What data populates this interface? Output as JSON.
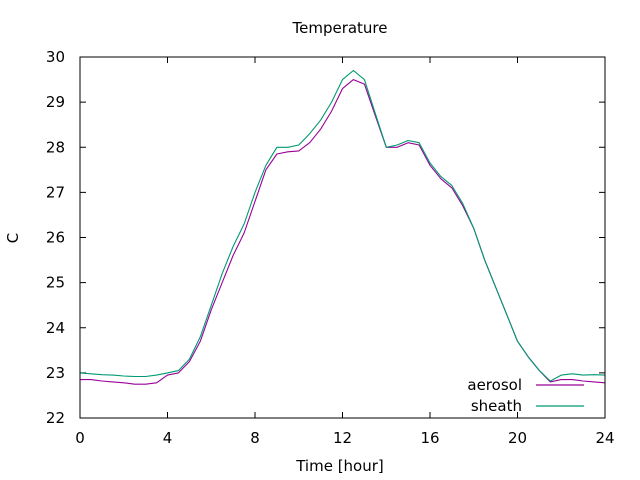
{
  "chart_data": {
    "type": "line",
    "title": "Temperature",
    "xlabel": "Time [hour]",
    "ylabel": "C",
    "xlim": [
      0,
      24
    ],
    "ylim": [
      22,
      30
    ],
    "xticks": [
      0,
      4,
      8,
      12,
      16,
      20,
      24
    ],
    "yticks": [
      22,
      23,
      24,
      25,
      26,
      27,
      28,
      29,
      30
    ],
    "grid": false,
    "legend_position": "bottom-right",
    "series": [
      {
        "name": "aerosol",
        "color": "#990099",
        "x": [
          0,
          0.5,
          1,
          1.5,
          2,
          2.5,
          3,
          3.5,
          4,
          4.5,
          5,
          5.5,
          6,
          6.5,
          7,
          7.5,
          8,
          8.5,
          9,
          9.5,
          10,
          10.5,
          11,
          11.5,
          12,
          12.5,
          13,
          13.5,
          14,
          14.5,
          15,
          15.5,
          16,
          16.5,
          17,
          17.5,
          18,
          18.5,
          19,
          19.5,
          20,
          20.5,
          21,
          21.5,
          22,
          22.5,
          23,
          23.5,
          24
        ],
        "y": [
          22.85,
          22.85,
          22.82,
          22.8,
          22.78,
          22.75,
          22.75,
          22.78,
          22.95,
          23.0,
          23.25,
          23.7,
          24.4,
          25.0,
          25.6,
          26.1,
          26.8,
          27.5,
          27.85,
          27.9,
          27.92,
          28.1,
          28.4,
          28.8,
          29.3,
          29.5,
          29.4,
          28.7,
          28.0,
          28.0,
          28.1,
          28.05,
          27.6,
          27.3,
          27.1,
          26.7,
          26.2,
          25.5,
          24.9,
          24.3,
          23.7,
          23.35,
          23.05,
          22.8,
          22.85,
          22.85,
          22.82,
          22.8,
          22.78
        ]
      },
      {
        "name": "sheath",
        "color": "#009973",
        "x": [
          0,
          0.5,
          1,
          1.5,
          2,
          2.5,
          3,
          3.5,
          4,
          4.5,
          5,
          5.5,
          6,
          6.5,
          7,
          7.5,
          8,
          8.5,
          9,
          9.5,
          10,
          10.5,
          11,
          11.5,
          12,
          12.5,
          13,
          13.5,
          14,
          14.5,
          15,
          15.5,
          16,
          16.5,
          17,
          17.5,
          18,
          18.5,
          19,
          19.5,
          20,
          20.5,
          21,
          21.5,
          22,
          22.5,
          23,
          23.5,
          24
        ],
        "y": [
          23.0,
          22.98,
          22.96,
          22.95,
          22.93,
          22.92,
          22.92,
          22.95,
          23.0,
          23.05,
          23.3,
          23.8,
          24.5,
          25.2,
          25.8,
          26.3,
          27.0,
          27.6,
          28.0,
          28.0,
          28.05,
          28.3,
          28.6,
          29.0,
          29.5,
          29.7,
          29.5,
          28.75,
          28.0,
          28.05,
          28.15,
          28.1,
          27.65,
          27.35,
          27.15,
          26.75,
          26.2,
          25.5,
          24.9,
          24.3,
          23.7,
          23.35,
          23.05,
          22.82,
          22.95,
          22.98,
          22.95,
          22.96,
          22.95
        ]
      }
    ]
  }
}
